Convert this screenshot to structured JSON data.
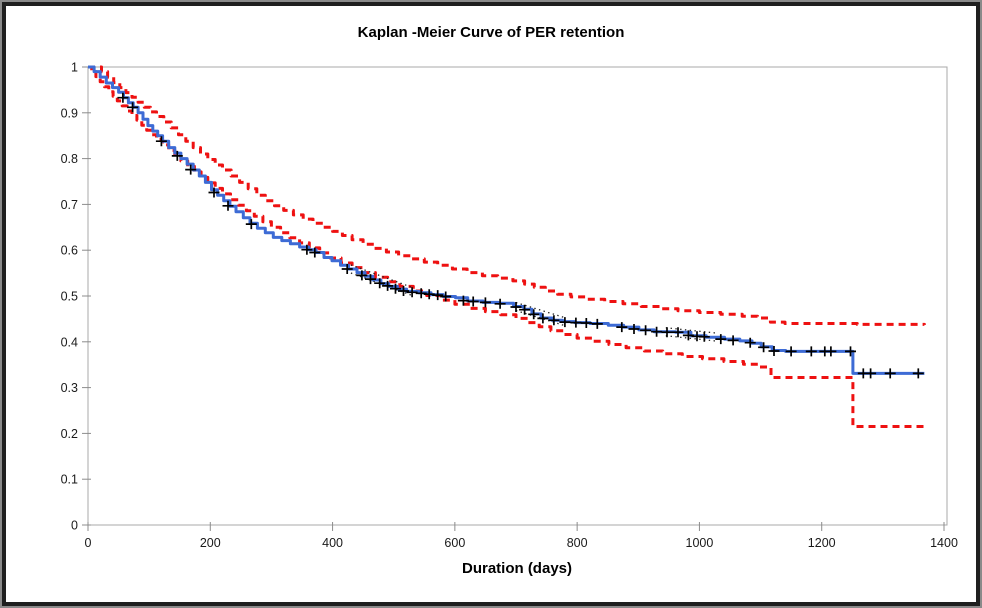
{
  "title": "Kaplan -Meier Curve of PER retention",
  "chart_data": {
    "type": "line",
    "title": "Kaplan -Meier Curve of PER retention",
    "xlabel": "Duration (days)",
    "ylabel": "",
    "xlim": [
      0,
      1400
    ],
    "ylim": [
      0,
      1
    ],
    "grid": false,
    "legend_position": "none",
    "x_ticks": [
      0,
      200,
      400,
      600,
      800,
      1000,
      1200,
      1400
    ],
    "x_tick_labels": [
      "0",
      "200",
      "400",
      "600",
      "800",
      "1000",
      "1200",
      "1400"
    ],
    "y_ticks": [
      0,
      0.1,
      0.2,
      0.3,
      0.4,
      0.5,
      0.6,
      0.7,
      0.8,
      0.9,
      1
    ],
    "y_tick_labels": [
      "0",
      "0.1",
      "0.2",
      "0.3",
      "0.4",
      "0.5",
      "0.6",
      "0.7",
      "0.8",
      "0.9",
      "1"
    ],
    "axis_color": "#a8a8a8",
    "tick_color": "#8c8c8c",
    "series": [
      {
        "name": "km-survival-estimate",
        "type": "step",
        "color": "#3d6bd5",
        "style": "solid",
        "width": 3,
        "points": [
          [
            0,
            1.0
          ],
          [
            10,
            0.99
          ],
          [
            20,
            0.978
          ],
          [
            30,
            0.965
          ],
          [
            40,
            0.955
          ],
          [
            50,
            0.945
          ],
          [
            58,
            0.933
          ],
          [
            66,
            0.922
          ],
          [
            74,
            0.912
          ],
          [
            82,
            0.9
          ],
          [
            90,
            0.886
          ],
          [
            98,
            0.872
          ],
          [
            106,
            0.86
          ],
          [
            114,
            0.85
          ],
          [
            122,
            0.838
          ],
          [
            132,
            0.824
          ],
          [
            142,
            0.812
          ],
          [
            152,
            0.8
          ],
          [
            162,
            0.788
          ],
          [
            172,
            0.775
          ],
          [
            182,
            0.762
          ],
          [
            192,
            0.748
          ],
          [
            202,
            0.732
          ],
          [
            212,
            0.72
          ],
          [
            222,
            0.708
          ],
          [
            232,
            0.696
          ],
          [
            242,
            0.684
          ],
          [
            254,
            0.671
          ],
          [
            265,
            0.659
          ],
          [
            277,
            0.648
          ],
          [
            290,
            0.638
          ],
          [
            303,
            0.628
          ],
          [
            317,
            0.621
          ],
          [
            331,
            0.614
          ],
          [
            346,
            0.607
          ],
          [
            361,
            0.601
          ],
          [
            373,
            0.595
          ],
          [
            386,
            0.584
          ],
          [
            399,
            0.577
          ],
          [
            413,
            0.567
          ],
          [
            426,
            0.559
          ],
          [
            440,
            0.551
          ],
          [
            453,
            0.543
          ],
          [
            466,
            0.535
          ],
          [
            479,
            0.527
          ],
          [
            492,
            0.521
          ],
          [
            506,
            0.515
          ],
          [
            521,
            0.51
          ],
          [
            541,
            0.507
          ],
          [
            561,
            0.503
          ],
          [
            581,
            0.499
          ],
          [
            601,
            0.496
          ],
          [
            621,
            0.489
          ],
          [
            646,
            0.486
          ],
          [
            671,
            0.484
          ],
          [
            696,
            0.477
          ],
          [
            713,
            0.471
          ],
          [
            726,
            0.461
          ],
          [
            741,
            0.452
          ],
          [
            759,
            0.447
          ],
          [
            776,
            0.444
          ],
          [
            796,
            0.442
          ],
          [
            821,
            0.44
          ],
          [
            851,
            0.436
          ],
          [
            876,
            0.432
          ],
          [
            901,
            0.426
          ],
          [
            926,
            0.422
          ],
          [
            961,
            0.421
          ],
          [
            986,
            0.413
          ],
          [
            1011,
            0.41
          ],
          [
            1041,
            0.406
          ],
          [
            1066,
            0.402
          ],
          [
            1086,
            0.397
          ],
          [
            1101,
            0.389
          ],
          [
            1119,
            0.381
          ],
          [
            1141,
            0.379
          ],
          [
            1251,
            0.331
          ],
          [
            1368,
            0.331
          ]
        ]
      },
      {
        "name": "ci-upper-95",
        "type": "step",
        "color": "#ee1111",
        "style": "dashed",
        "width": 3,
        "points": [
          [
            0,
            1.0
          ],
          [
            22,
            0.99
          ],
          [
            32,
            0.978
          ],
          [
            42,
            0.966
          ],
          [
            52,
            0.955
          ],
          [
            62,
            0.944
          ],
          [
            72,
            0.934
          ],
          [
            82,
            0.923
          ],
          [
            92,
            0.912
          ],
          [
            102,
            0.902
          ],
          [
            112,
            0.892
          ],
          [
            124,
            0.88
          ],
          [
            136,
            0.867
          ],
          [
            148,
            0.852
          ],
          [
            160,
            0.838
          ],
          [
            172,
            0.824
          ],
          [
            184,
            0.81
          ],
          [
            196,
            0.798
          ],
          [
            208,
            0.786
          ],
          [
            220,
            0.775
          ],
          [
            234,
            0.762
          ],
          [
            248,
            0.748
          ],
          [
            262,
            0.734
          ],
          [
            276,
            0.72
          ],
          [
            290,
            0.708
          ],
          [
            305,
            0.697
          ],
          [
            320,
            0.687
          ],
          [
            336,
            0.677
          ],
          [
            352,
            0.668
          ],
          [
            368,
            0.659
          ],
          [
            384,
            0.65
          ],
          [
            400,
            0.641
          ],
          [
            416,
            0.632
          ],
          [
            432,
            0.623
          ],
          [
            450,
            0.613
          ],
          [
            468,
            0.604
          ],
          [
            488,
            0.596
          ],
          [
            508,
            0.588
          ],
          [
            528,
            0.581
          ],
          [
            550,
            0.574
          ],
          [
            572,
            0.567
          ],
          [
            596,
            0.559
          ],
          [
            620,
            0.551
          ],
          [
            645,
            0.544
          ],
          [
            670,
            0.539
          ],
          [
            695,
            0.533
          ],
          [
            714,
            0.526
          ],
          [
            730,
            0.519
          ],
          [
            748,
            0.511
          ],
          [
            768,
            0.504
          ],
          [
            790,
            0.498
          ],
          [
            815,
            0.493
          ],
          [
            845,
            0.488
          ],
          [
            875,
            0.483
          ],
          [
            905,
            0.477
          ],
          [
            935,
            0.472
          ],
          [
            965,
            0.468
          ],
          [
            1000,
            0.464
          ],
          [
            1035,
            0.46
          ],
          [
            1070,
            0.456
          ],
          [
            1095,
            0.452
          ],
          [
            1116,
            0.443
          ],
          [
            1140,
            0.44
          ],
          [
            1258,
            0.438
          ],
          [
            1368,
            0.437
          ]
        ]
      },
      {
        "name": "ci-lower-95",
        "type": "step",
        "color": "#ee1111",
        "style": "dashed",
        "width": 3,
        "points": [
          [
            0,
            1.0
          ],
          [
            6,
            0.99
          ],
          [
            13,
            0.979
          ],
          [
            20,
            0.968
          ],
          [
            27,
            0.957
          ],
          [
            34,
            0.946
          ],
          [
            41,
            0.936
          ],
          [
            48,
            0.926
          ],
          [
            56,
            0.915
          ],
          [
            64,
            0.904
          ],
          [
            72,
            0.894
          ],
          [
            80,
            0.884
          ],
          [
            88,
            0.873
          ],
          [
            96,
            0.862
          ],
          [
            104,
            0.852
          ],
          [
            112,
            0.842
          ],
          [
            122,
            0.83
          ],
          [
            132,
            0.818
          ],
          [
            142,
            0.806
          ],
          [
            152,
            0.795
          ],
          [
            163,
            0.783
          ],
          [
            174,
            0.771
          ],
          [
            185,
            0.759
          ],
          [
            196,
            0.747
          ],
          [
            208,
            0.735
          ],
          [
            220,
            0.723
          ],
          [
            233,
            0.71
          ],
          [
            246,
            0.698
          ],
          [
            259,
            0.686
          ],
          [
            272,
            0.674
          ],
          [
            286,
            0.662
          ],
          [
            300,
            0.65
          ],
          [
            315,
            0.638
          ],
          [
            330,
            0.627
          ],
          [
            346,
            0.616
          ],
          [
            362,
            0.605
          ],
          [
            379,
            0.594
          ],
          [
            396,
            0.583
          ],
          [
            414,
            0.572
          ],
          [
            432,
            0.562
          ],
          [
            451,
            0.551
          ],
          [
            470,
            0.541
          ],
          [
            490,
            0.531
          ],
          [
            510,
            0.521
          ],
          [
            532,
            0.511
          ],
          [
            554,
            0.501
          ],
          [
            577,
            0.491
          ],
          [
            600,
            0.482
          ],
          [
            625,
            0.473
          ],
          [
            650,
            0.466
          ],
          [
            675,
            0.459
          ],
          [
            700,
            0.451
          ],
          [
            720,
            0.442
          ],
          [
            738,
            0.433
          ],
          [
            757,
            0.424
          ],
          [
            778,
            0.416
          ],
          [
            800,
            0.408
          ],
          [
            825,
            0.401
          ],
          [
            852,
            0.394
          ],
          [
            880,
            0.387
          ],
          [
            910,
            0.38
          ],
          [
            940,
            0.374
          ],
          [
            972,
            0.368
          ],
          [
            1005,
            0.363
          ],
          [
            1040,
            0.357
          ],
          [
            1072,
            0.351
          ],
          [
            1096,
            0.345
          ],
          [
            1117,
            0.322
          ],
          [
            1251,
            0.215
          ],
          [
            1368,
            0.214
          ]
        ]
      }
    ],
    "censor_marks": {
      "name": "censoring-ticks",
      "symbol": "+",
      "color": "#000000",
      "points": [
        [
          57,
          0.933
        ],
        [
          73,
          0.912
        ],
        [
          120,
          0.838
        ],
        [
          146,
          0.806
        ],
        [
          168,
          0.776
        ],
        [
          206,
          0.726
        ],
        [
          229,
          0.697
        ],
        [
          267,
          0.657
        ],
        [
          358,
          0.601
        ],
        [
          371,
          0.595
        ],
        [
          424,
          0.559
        ],
        [
          448,
          0.545
        ],
        [
          462,
          0.537
        ],
        [
          477,
          0.528
        ],
        [
          490,
          0.522
        ],
        [
          503,
          0.516
        ],
        [
          516,
          0.511
        ],
        [
          530,
          0.508
        ],
        [
          545,
          0.506
        ],
        [
          558,
          0.504
        ],
        [
          572,
          0.502
        ],
        [
          585,
          0.499
        ],
        [
          614,
          0.49
        ],
        [
          630,
          0.488
        ],
        [
          650,
          0.486
        ],
        [
          674,
          0.483
        ],
        [
          700,
          0.476
        ],
        [
          714,
          0.47
        ],
        [
          729,
          0.46
        ],
        [
          744,
          0.451
        ],
        [
          762,
          0.447
        ],
        [
          780,
          0.443
        ],
        [
          798,
          0.442
        ],
        [
          815,
          0.441
        ],
        [
          833,
          0.439
        ],
        [
          873,
          0.432
        ],
        [
          893,
          0.428
        ],
        [
          912,
          0.425
        ],
        [
          930,
          0.422
        ],
        [
          947,
          0.421
        ],
        [
          965,
          0.421
        ],
        [
          982,
          0.414
        ],
        [
          996,
          0.412
        ],
        [
          1008,
          0.411
        ],
        [
          1035,
          0.406
        ],
        [
          1055,
          0.403
        ],
        [
          1083,
          0.398
        ],
        [
          1105,
          0.388
        ],
        [
          1122,
          0.38
        ],
        [
          1150,
          0.379
        ],
        [
          1183,
          0.379
        ],
        [
          1205,
          0.379
        ],
        [
          1215,
          0.379
        ],
        [
          1247,
          0.379
        ],
        [
          1268,
          0.331
        ],
        [
          1280,
          0.331
        ],
        [
          1312,
          0.331
        ],
        [
          1358,
          0.331
        ]
      ]
    },
    "dotted_segments": [
      {
        "from": 430,
        "to": 530
      },
      {
        "from": 700,
        "to": 780
      },
      {
        "from": 945,
        "to": 1030
      }
    ]
  }
}
